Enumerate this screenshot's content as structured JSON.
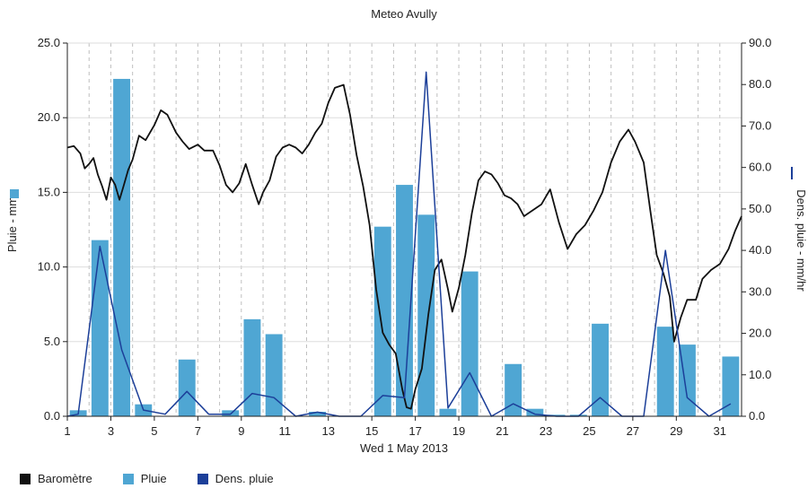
{
  "chart_data": {
    "type": "bar",
    "title": "Meteo  Avully",
    "xlabel": "Wed 1 May 2013",
    "ylabel_left": "Pluie - mm",
    "ylabel_right": "Dens. pluie - mm/hr",
    "x_ticks": [
      "1",
      "3",
      "5",
      "7",
      "9",
      "11",
      "13",
      "15",
      "17",
      "19",
      "21",
      "23",
      "25",
      "27",
      "29",
      "31"
    ],
    "xlim": [
      1,
      32
    ],
    "ylim_left": [
      0,
      25
    ],
    "ylim_right": [
      0,
      90
    ],
    "left_ticks": [
      "0.0",
      "5.0",
      "10.0",
      "15.0",
      "20.0",
      "25.0"
    ],
    "right_ticks": [
      "0.0",
      "10.0",
      "20.0",
      "30.0",
      "40.0",
      "50.0",
      "60.0",
      "70.0",
      "80.0",
      "90.0"
    ],
    "grid": true,
    "legend_position": "bottom-left",
    "colors": {
      "barometre": "#111111",
      "pluie": "#4fa6d3",
      "dens": "#1c3f99"
    },
    "series": [
      {
        "name": "Pluie",
        "axis": "left",
        "kind": "bar",
        "points": [
          [
            1.5,
            0.4
          ],
          [
            2.5,
            11.8
          ],
          [
            3.5,
            22.6
          ],
          [
            4.5,
            0.8
          ],
          [
            6.5,
            3.8
          ],
          [
            8.5,
            0.4
          ],
          [
            9.5,
            6.5
          ],
          [
            10.5,
            5.5
          ],
          [
            12.5,
            0.3
          ],
          [
            15.5,
            12.7
          ],
          [
            16.5,
            15.5
          ],
          [
            17.5,
            13.5
          ],
          [
            18.5,
            0.5
          ],
          [
            19.5,
            9.7
          ],
          [
            21.5,
            3.5
          ],
          [
            22.5,
            0.5
          ],
          [
            23.5,
            0.1
          ],
          [
            24.5,
            0.1
          ],
          [
            25.5,
            6.2
          ],
          [
            28.5,
            6.0
          ],
          [
            29.5,
            4.8
          ],
          [
            31.5,
            4.0
          ]
        ]
      },
      {
        "name": "Dens. pluie",
        "axis": "right",
        "kind": "line",
        "points": [
          [
            1,
            0
          ],
          [
            1.5,
            0.5
          ],
          [
            2.5,
            41
          ],
          [
            3.5,
            16
          ],
          [
            4.5,
            1.5
          ],
          [
            5.5,
            0.5
          ],
          [
            6.5,
            6
          ],
          [
            7.5,
            0.5
          ],
          [
            8.5,
            0.5
          ],
          [
            9.5,
            5.5
          ],
          [
            10.5,
            4.5
          ],
          [
            11.5,
            0
          ],
          [
            12.5,
            1
          ],
          [
            13.5,
            0
          ],
          [
            14.5,
            0
          ],
          [
            15.5,
            5
          ],
          [
            16.5,
            4.5
          ],
          [
            17.5,
            83
          ],
          [
            18.5,
            2
          ],
          [
            19.5,
            10.5
          ],
          [
            20.5,
            0
          ],
          [
            21.5,
            3
          ],
          [
            22.5,
            0.5
          ],
          [
            23.5,
            0
          ],
          [
            24.5,
            0
          ],
          [
            25.5,
            4.5
          ],
          [
            26.5,
            0
          ],
          [
            27.5,
            0
          ],
          [
            28.5,
            40
          ],
          [
            29.5,
            4.5
          ],
          [
            30.5,
            0
          ],
          [
            31.5,
            3
          ]
        ]
      },
      {
        "name": "Baromètre",
        "axis": "left",
        "kind": "line",
        "points": [
          [
            1,
            18.0
          ],
          [
            1.3,
            18.1
          ],
          [
            1.6,
            17.6
          ],
          [
            1.8,
            16.6
          ],
          [
            2.0,
            16.9
          ],
          [
            2.2,
            17.3
          ],
          [
            2.4,
            16.2
          ],
          [
            2.6,
            15.4
          ],
          [
            2.8,
            14.5
          ],
          [
            3.0,
            16.0
          ],
          [
            3.2,
            15.5
          ],
          [
            3.4,
            14.5
          ],
          [
            3.6,
            15.5
          ],
          [
            3.8,
            16.5
          ],
          [
            4.0,
            17.2
          ],
          [
            4.3,
            18.8
          ],
          [
            4.6,
            18.5
          ],
          [
            5.0,
            19.5
          ],
          [
            5.3,
            20.5
          ],
          [
            5.6,
            20.2
          ],
          [
            6.0,
            19.0
          ],
          [
            6.3,
            18.4
          ],
          [
            6.6,
            17.9
          ],
          [
            7.0,
            18.2
          ],
          [
            7.3,
            17.8
          ],
          [
            7.7,
            17.8
          ],
          [
            8.0,
            16.8
          ],
          [
            8.3,
            15.5
          ],
          [
            8.6,
            15.0
          ],
          [
            8.9,
            15.6
          ],
          [
            9.2,
            16.9
          ],
          [
            9.5,
            15.5
          ],
          [
            9.8,
            14.2
          ],
          [
            10.0,
            15.0
          ],
          [
            10.3,
            15.8
          ],
          [
            10.6,
            17.4
          ],
          [
            10.9,
            18.0
          ],
          [
            11.2,
            18.2
          ],
          [
            11.5,
            18.0
          ],
          [
            11.8,
            17.6
          ],
          [
            12.1,
            18.2
          ],
          [
            12.4,
            19.0
          ],
          [
            12.7,
            19.6
          ],
          [
            13.0,
            21.0
          ],
          [
            13.3,
            22.0
          ],
          [
            13.7,
            22.2
          ],
          [
            14.0,
            20.2
          ],
          [
            14.3,
            17.5
          ],
          [
            14.6,
            15.4
          ],
          [
            14.9,
            12.8
          ],
          [
            15.2,
            8.5
          ],
          [
            15.5,
            5.6
          ],
          [
            15.8,
            4.8
          ],
          [
            16.1,
            4.2
          ],
          [
            16.4,
            1.8
          ],
          [
            16.6,
            0.6
          ],
          [
            16.8,
            0.5
          ],
          [
            17.0,
            1.8
          ],
          [
            17.3,
            3.2
          ],
          [
            17.6,
            6.8
          ],
          [
            17.9,
            9.8
          ],
          [
            18.2,
            10.5
          ],
          [
            18.5,
            8.5
          ],
          [
            18.7,
            7.0
          ],
          [
            19.0,
            8.6
          ],
          [
            19.3,
            10.8
          ],
          [
            19.6,
            13.6
          ],
          [
            19.9,
            15.8
          ],
          [
            20.2,
            16.4
          ],
          [
            20.5,
            16.2
          ],
          [
            20.8,
            15.6
          ],
          [
            21.1,
            14.8
          ],
          [
            21.4,
            14.6
          ],
          [
            21.7,
            14.2
          ],
          [
            22.0,
            13.4
          ],
          [
            22.4,
            13.8
          ],
          [
            22.8,
            14.2
          ],
          [
            23.2,
            15.2
          ],
          [
            23.6,
            13.0
          ],
          [
            24.0,
            11.2
          ],
          [
            24.4,
            12.2
          ],
          [
            24.8,
            12.8
          ],
          [
            25.2,
            13.8
          ],
          [
            25.6,
            15.0
          ],
          [
            26.0,
            17.0
          ],
          [
            26.4,
            18.4
          ],
          [
            26.8,
            19.2
          ],
          [
            27.1,
            18.4
          ],
          [
            27.5,
            17.0
          ],
          [
            27.8,
            13.8
          ],
          [
            28.1,
            10.8
          ],
          [
            28.4,
            9.6
          ],
          [
            28.7,
            8.0
          ],
          [
            28.9,
            5.0
          ],
          [
            29.2,
            6.6
          ],
          [
            29.5,
            7.8
          ],
          [
            29.9,
            7.8
          ],
          [
            30.2,
            9.2
          ],
          [
            30.6,
            9.8
          ],
          [
            31.0,
            10.2
          ],
          [
            31.4,
            11.2
          ],
          [
            31.7,
            12.4
          ],
          [
            32.0,
            13.4
          ]
        ]
      }
    ]
  },
  "legend": [
    {
      "label": "Baromètre",
      "color": "#111111"
    },
    {
      "label": "Pluie",
      "color": "#4fa6d3"
    },
    {
      "label": "Dens. pluie",
      "color": "#1c3f99"
    }
  ]
}
